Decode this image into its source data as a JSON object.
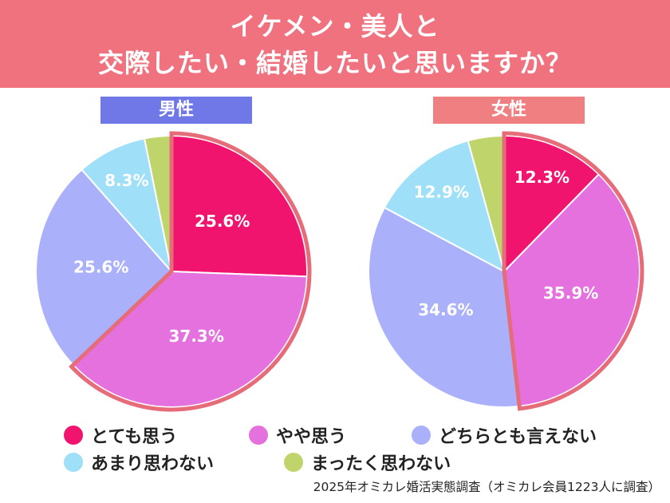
{
  "header": {
    "title_line1": "イケメン・美人と",
    "title_line2": "交際したい・結婚したいと思いますか？"
  },
  "chart_data": [
    {
      "type": "pie",
      "title": "男性",
      "categories": [
        "とても思う",
        "やや思う",
        "どちらとも言えない",
        "あまり思わない",
        "まったく思わない"
      ],
      "values": [
        25.6,
        37.3,
        25.6,
        8.3,
        3.2
      ],
      "labels": [
        "25.6%",
        "37.3%",
        "25.6%",
        "8.3%",
        ""
      ],
      "highlighted": [
        "とても思う",
        "やや思う"
      ]
    },
    {
      "type": "pie",
      "title": "女性",
      "categories": [
        "とても思う",
        "やや思う",
        "どちらとも言えない",
        "あまり思わない",
        "まったく思わない"
      ],
      "values": [
        12.3,
        35.9,
        34.6,
        12.9,
        4.3
      ],
      "labels": [
        "12.3%",
        "35.9%",
        "34.6%",
        "12.9%",
        ""
      ],
      "highlighted": [
        "とても思う",
        "やや思う"
      ]
    }
  ],
  "colors": {
    "とても思う": "#f0146e",
    "やや思う": "#e571df",
    "どちらとも言えない": "#aab0fa",
    "あまり思わない": "#9fdff8",
    "まったく思わない": "#bfd46a",
    "highlight_outline": "#e66c7a",
    "header_bg": "#f0727f",
    "male_label_bg": "#6f78e6",
    "female_label_bg": "#f07f82"
  },
  "legend": [
    {
      "label": "とても思う",
      "color": "#f0146e"
    },
    {
      "label": "やや思う",
      "color": "#e571df"
    },
    {
      "label": "どちらとも言えない",
      "color": "#aab0fa"
    },
    {
      "label": "あまり思わない",
      "color": "#9fdff8"
    },
    {
      "label": "まったく思わない",
      "color": "#bfd46a"
    }
  ],
  "source": "2025年オミカレ婚活実態調査（オミカレ会員1223人に調査）"
}
